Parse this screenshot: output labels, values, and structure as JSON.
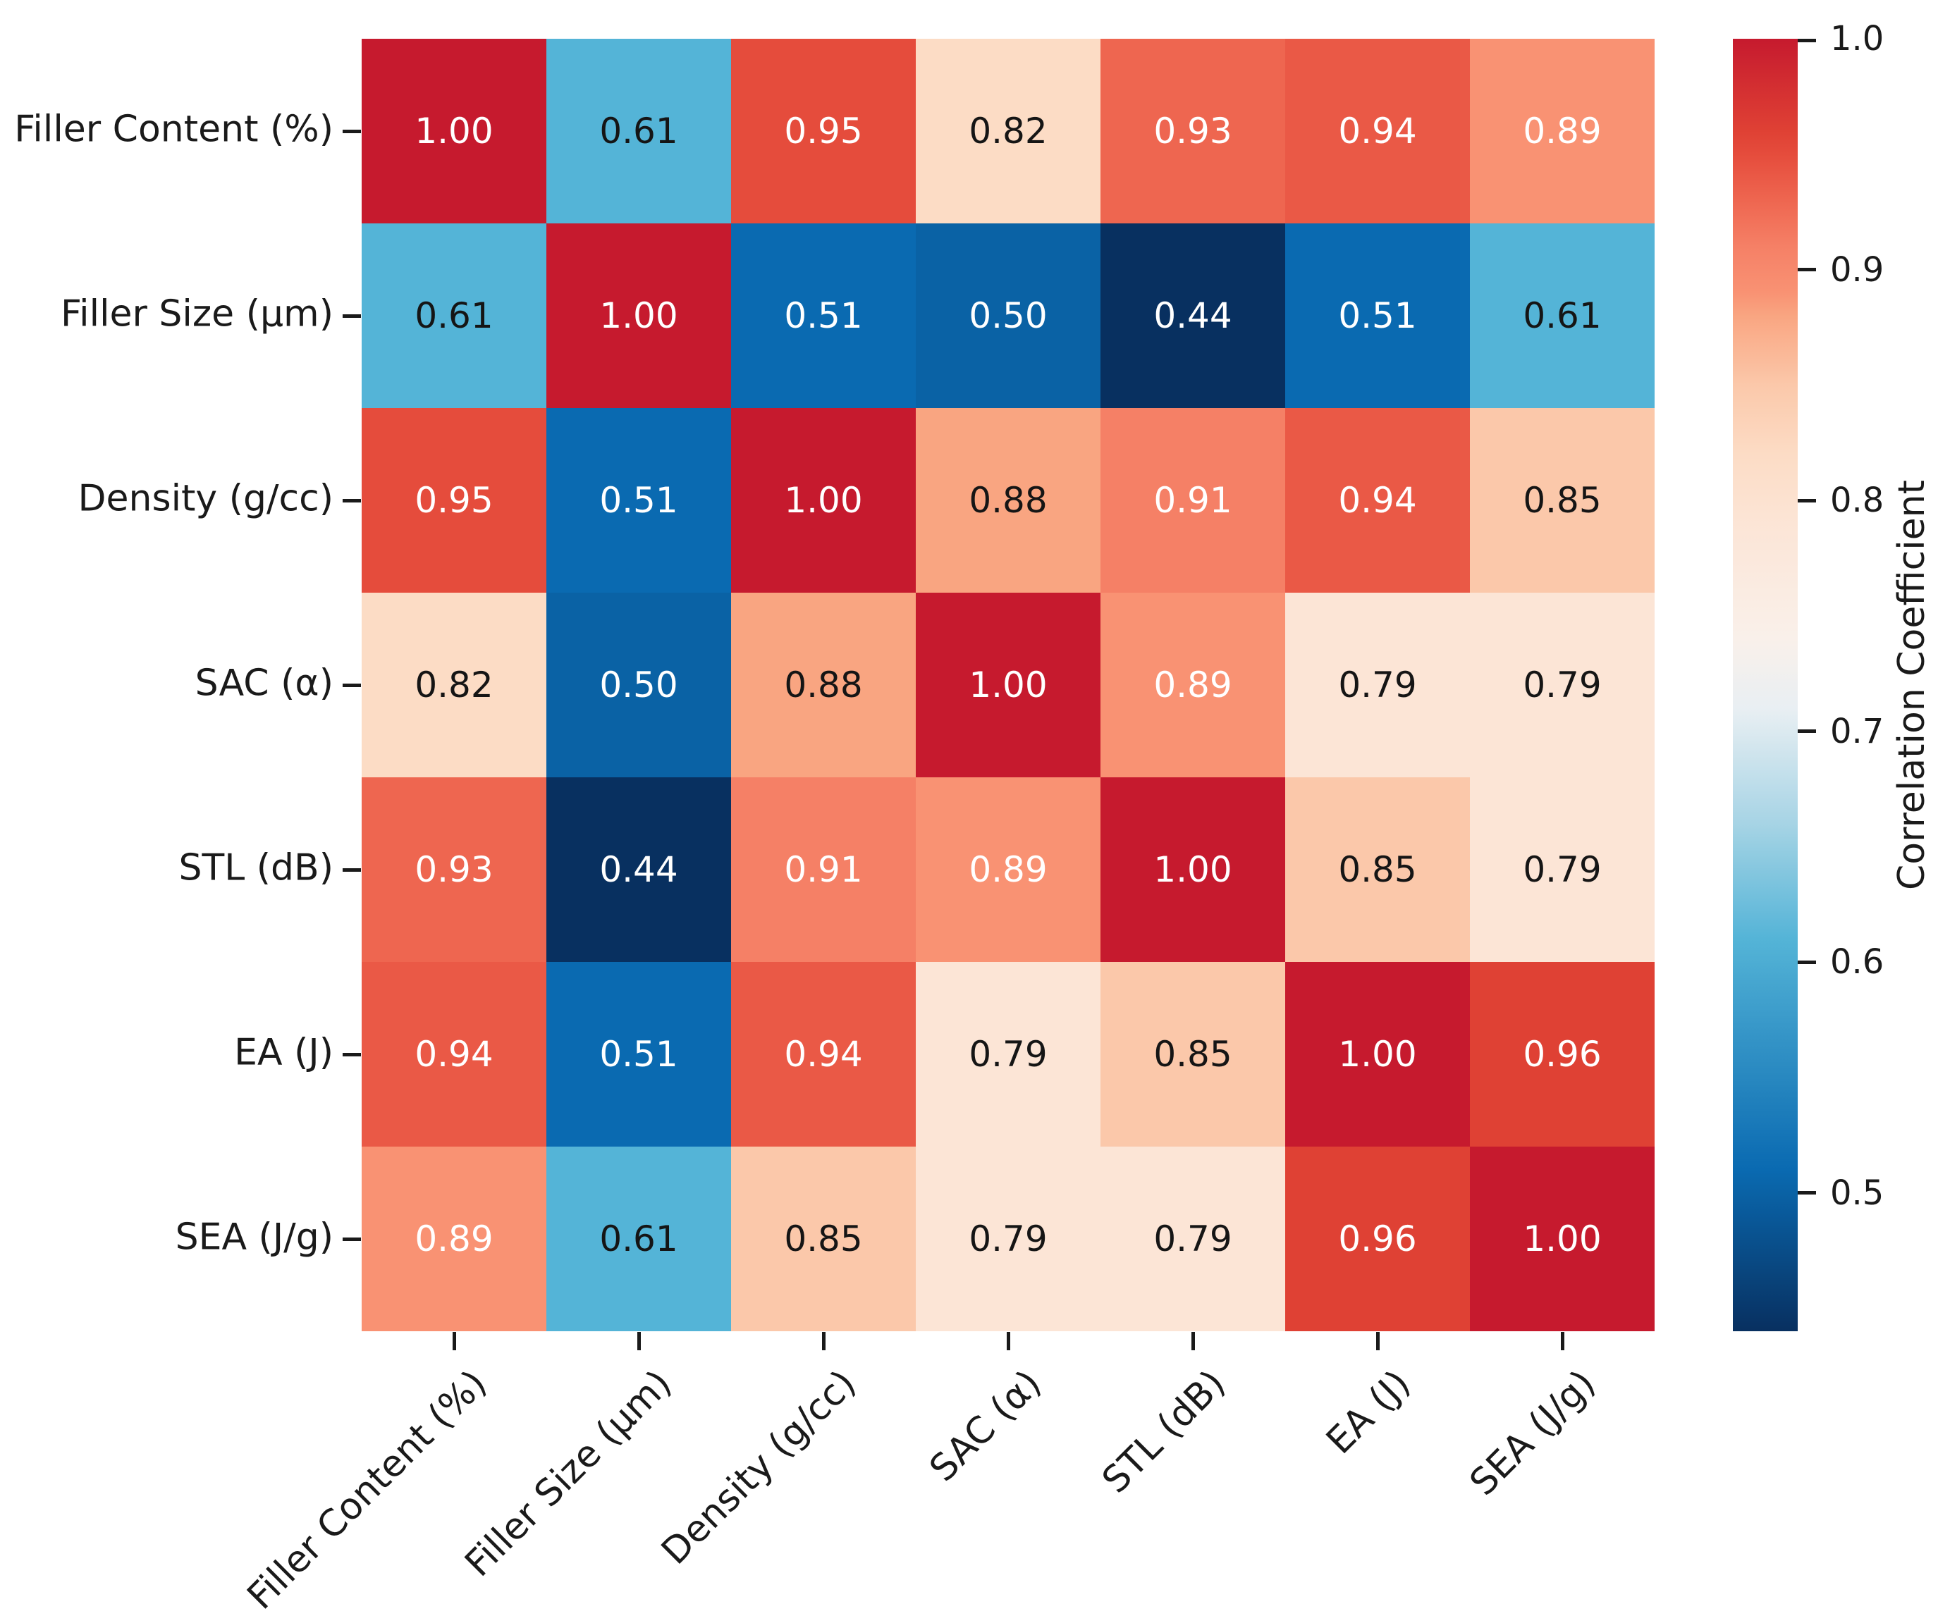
{
  "chart_data": {
    "type": "heatmap",
    "title": "",
    "variables": [
      "Filler Content (%)",
      "Filler Size (µm)",
      "Density (g/cc)",
      "SAC (α)",
      "STL (dB)",
      "EA (J)",
      "SEA (J/g)"
    ],
    "matrix": [
      [
        1.0,
        0.61,
        0.95,
        0.82,
        0.93,
        0.94,
        0.89
      ],
      [
        0.61,
        1.0,
        0.51,
        0.5,
        0.44,
        0.51,
        0.61
      ],
      [
        0.95,
        0.51,
        1.0,
        0.88,
        0.91,
        0.94,
        0.85
      ],
      [
        0.82,
        0.5,
        0.88,
        1.0,
        0.89,
        0.79,
        0.79
      ],
      [
        0.93,
        0.44,
        0.91,
        0.89,
        1.0,
        0.85,
        0.79
      ],
      [
        0.94,
        0.51,
        0.94,
        0.79,
        0.85,
        1.0,
        0.96
      ],
      [
        0.89,
        0.61,
        0.85,
        0.79,
        0.79,
        0.96,
        1.0
      ]
    ],
    "value_format_decimals": 2,
    "colorbar": {
      "label": "Correlation Coefficient",
      "tick_labels": [
        "1.0",
        "0.9",
        "0.8",
        "0.7",
        "0.6",
        "0.5"
      ],
      "tick_values": [
        1.0,
        0.9,
        0.8,
        0.7,
        0.6,
        0.5
      ],
      "vmin": 0.44,
      "vmax": 1.0
    },
    "colormap_name": "RdBu_r",
    "colormap_stops": [
      [
        0.44,
        "#083060"
      ],
      [
        0.51,
        "#0a6ab1"
      ],
      [
        0.61,
        "#54b4d7"
      ],
      [
        0.66,
        "#a7d4e5"
      ],
      [
        0.71,
        "#e9eff3"
      ],
      [
        0.74,
        "#f9f0ea"
      ],
      [
        0.79,
        "#fce5d6"
      ],
      [
        0.82,
        "#fcdcc5"
      ],
      [
        0.85,
        "#fbc8aa"
      ],
      [
        0.88,
        "#f9a581"
      ],
      [
        0.89,
        "#f99273"
      ],
      [
        0.91,
        "#f58066"
      ],
      [
        0.93,
        "#ee6650"
      ],
      [
        0.95,
        "#e54c3c"
      ],
      [
        0.96,
        "#df4134"
      ],
      [
        1.0,
        "#c61a2e"
      ]
    ],
    "annotation_text_colors": {
      "light": "#ffffff",
      "dark": "#151515",
      "white_if_value_at_least": 0.89,
      "white_if_value_at_most": 0.55
    },
    "axis_tick_color": "#1a1a1a",
    "legend_position": "right",
    "grid": "off"
  }
}
